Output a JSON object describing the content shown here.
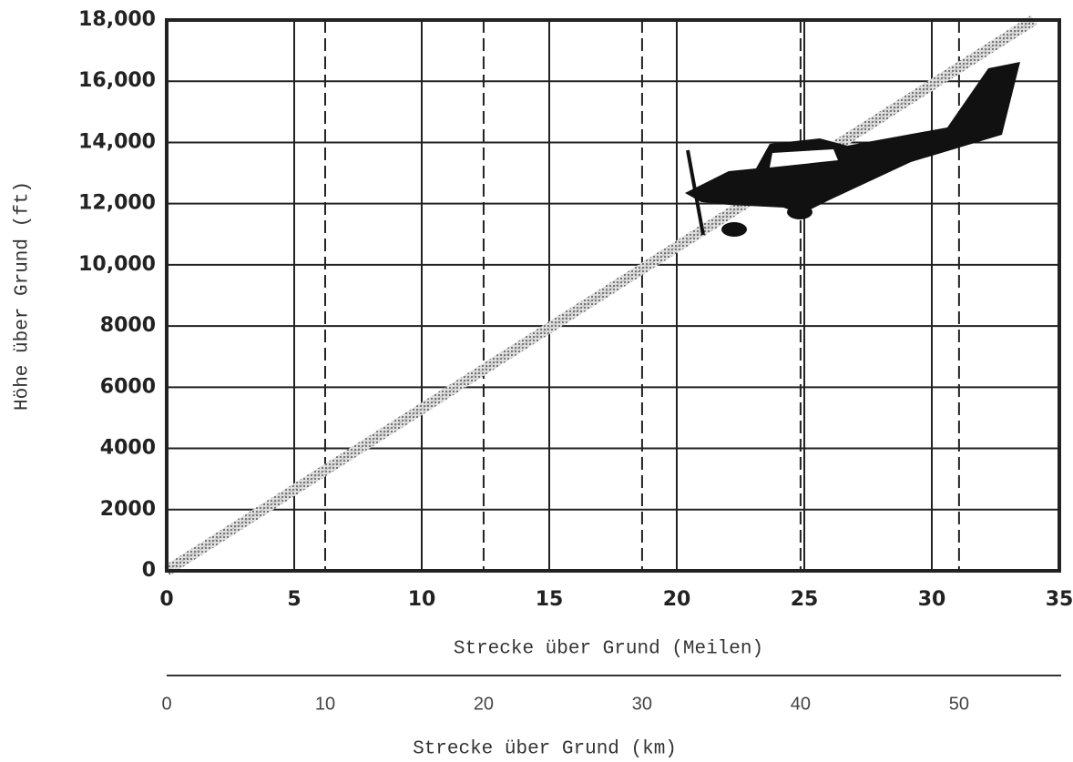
{
  "chart_data": {
    "type": "line",
    "y_label": "Höhe über Grund (ft)",
    "x_label": "Strecke über Grund (Meilen)",
    "x2_label": "Strecke über Grund (km)",
    "x": [
      0,
      34
    ],
    "series": [
      {
        "values": [
          0,
          18000
        ],
        "color": "#888888"
      }
    ],
    "xlim": [
      0,
      35
    ],
    "xticks": [
      0,
      5,
      10,
      15,
      20,
      25,
      30,
      35
    ],
    "x2lim": [
      0,
      56.33
    ],
    "x2ticks": [
      0,
      10,
      20,
      30,
      40,
      50
    ],
    "ylim": [
      0,
      18000
    ],
    "yticks": [
      0,
      2000,
      4000,
      6000,
      8000,
      {
        "value": 10000,
        "label": "10,000"
      },
      {
        "value": 12000,
        "label": "12,000"
      },
      {
        "value": 14000,
        "label": "14,000"
      },
      {
        "value": 16000,
        "label": "16,000"
      },
      {
        "value": 18000,
        "label": "18,000"
      }
    ],
    "grid": true
  }
}
